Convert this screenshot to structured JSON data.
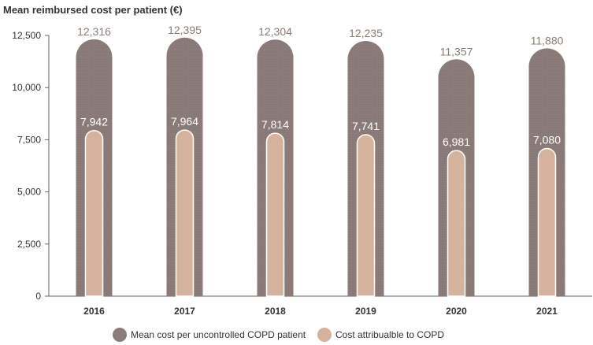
{
  "chart_data": {
    "type": "bar",
    "title": "Mean reimbursed cost per patient (€)",
    "categories": [
      "2016",
      "2017",
      "2018",
      "2019",
      "2020",
      "2021"
    ],
    "series": [
      {
        "name": "Mean cost per uncontrolled COPD patient",
        "color": "#8b7c79",
        "values": [
          12316,
          12395,
          12304,
          12235,
          11357,
          11880
        ],
        "labels": [
          "12,316",
          "12,395",
          "12,304",
          "12,235",
          "11,357",
          "11,880"
        ]
      },
      {
        "name": "Cost attribualble to COPD",
        "color": "#d5b29c",
        "values": [
          7942,
          7964,
          7814,
          7741,
          6981,
          7080
        ],
        "labels": [
          "7,942",
          "7,964",
          "7,814",
          "7,741",
          "6,981",
          "7,080"
        ]
      }
    ],
    "ylim": [
      0,
      12500
    ],
    "yticks": [
      0,
      2500,
      5000,
      7500,
      10000,
      12500
    ],
    "ytick_labels": [
      "0",
      "2,500",
      "5,000",
      "7,500",
      "10,000",
      "12,500"
    ],
    "grid": false,
    "legend": "bottom-center",
    "xlabel": "",
    "ylabel": ""
  }
}
